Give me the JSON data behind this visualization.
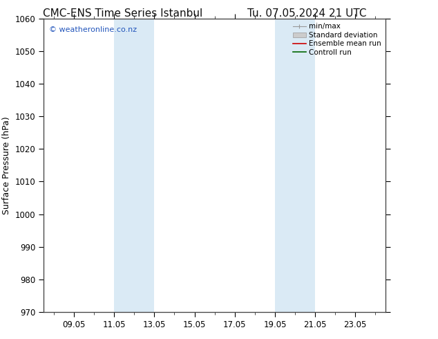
{
  "title_left": "CMC-ENS Time Series Istanbul",
  "title_right": "Tu. 07.05.2024 21 UTC",
  "ylabel": "Surface Pressure (hPa)",
  "ylim": [
    970,
    1060
  ],
  "yticks": [
    970,
    980,
    990,
    1000,
    1010,
    1020,
    1030,
    1040,
    1050,
    1060
  ],
  "xlim": [
    -0.5,
    16.5
  ],
  "xtick_labels": [
    "09.05",
    "11.05",
    "13.05",
    "15.05",
    "17.05",
    "19.05",
    "21.05",
    "23.05"
  ],
  "xtick_positions": [
    1,
    3,
    5,
    7,
    9,
    11,
    13,
    15
  ],
  "shaded_bands": [
    {
      "x_start": 3.0,
      "x_end": 5.0
    },
    {
      "x_start": 11.0,
      "x_end": 13.0
    }
  ],
  "shaded_color": "#daeaf5",
  "copyright_text": "© weatheronline.co.nz",
  "copyright_color": "#2255bb",
  "background_color": "#ffffff",
  "title_fontsize": 11,
  "axis_label_fontsize": 9,
  "tick_fontsize": 8.5,
  "legend_fontsize": 7.5
}
